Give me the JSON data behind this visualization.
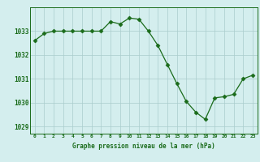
{
  "hours": [
    0,
    1,
    2,
    3,
    4,
    5,
    6,
    7,
    8,
    9,
    10,
    11,
    12,
    13,
    14,
    15,
    16,
    17,
    18,
    19,
    20,
    21,
    22,
    23
  ],
  "pressure": [
    1032.6,
    1032.9,
    1033.0,
    1033.0,
    1033.0,
    1033.0,
    1033.0,
    1033.0,
    1033.4,
    1033.3,
    1033.55,
    1033.5,
    1033.0,
    1032.4,
    1031.6,
    1030.8,
    1030.05,
    1029.6,
    1029.3,
    1030.2,
    1030.25,
    1030.35,
    1031.0,
    1031.15
  ],
  "line_color": "#1a6b1a",
  "marker": "D",
  "marker_size": 2.5,
  "bg_color": "#d4eeee",
  "grid_color": "#aacccc",
  "xlabel": "Graphe pression niveau de la mer (hPa)",
  "ylabel_ticks": [
    1029,
    1030,
    1031,
    1032,
    1033
  ],
  "ylim": [
    1028.7,
    1034.0
  ],
  "xlim": [
    -0.5,
    23.5
  ]
}
